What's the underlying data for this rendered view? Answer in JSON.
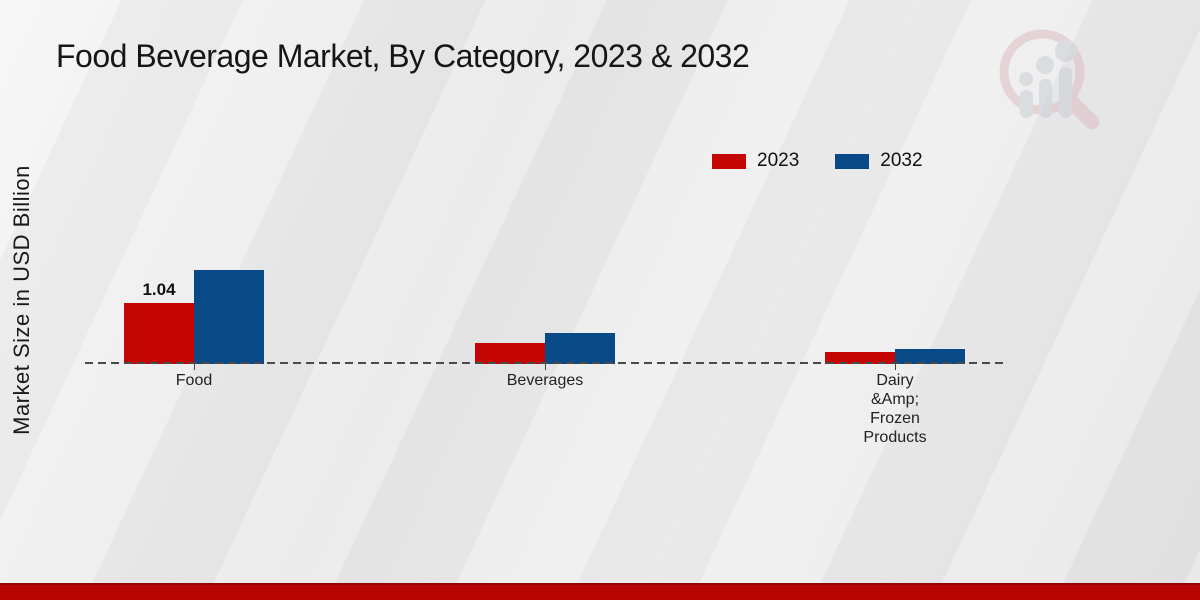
{
  "chart_data": {
    "type": "bar",
    "title": "Food Beverage Market, By Category, 2023 & 2032",
    "xlabel": "",
    "ylabel": "Market Size in USD Billion",
    "categories": [
      "Food",
      "Beverages",
      "Dairy\n&Amp;\nFrozen\nProducts"
    ],
    "series": [
      {
        "name": "2023",
        "color": "#c50404",
        "values": [
          1.04,
          0.35,
          0.2
        ]
      },
      {
        "name": "2032",
        "color": "#084a87",
        "values": [
          1.59,
          0.53,
          0.25
        ]
      }
    ],
    "value_labels": [
      {
        "series_index": 0,
        "category_index": 0,
        "text": "1.04"
      }
    ],
    "ylim": [
      0,
      1.7
    ],
    "grid": false,
    "baseline_style": "dashed",
    "legend_position": "top-right"
  },
  "brand": {
    "accent_red": "#b90404",
    "watermark_ring": "#dcb9be",
    "watermark_bars": "#c7ccd2"
  }
}
